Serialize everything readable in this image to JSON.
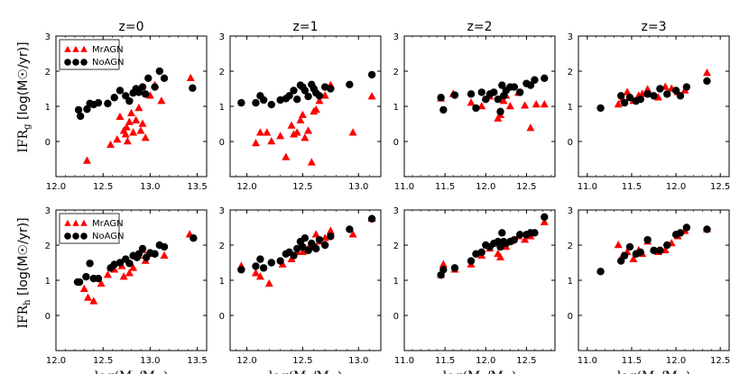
{
  "colors": {
    "mragn": "#ff0000",
    "noagn": "#000000"
  },
  "row_labels": {
    "top": {
      "main": "IFR",
      "sub": "g",
      "rest": " [log(M☉/yr)]"
    },
    "bottom": {
      "main": "IFR",
      "sub": "h",
      "rest": " [log(M☉/yr)]"
    }
  },
  "xlabel": {
    "pre": "log(M",
    "sub": "h",
    "mid": "/M",
    "sub2": "☉",
    "post": ")"
  },
  "legend": {
    "series1": "MrAGN",
    "series2": "NoAGN"
  },
  "chart_data": [
    {
      "type": "scatter",
      "title": "z=0",
      "row": "IFRg",
      "xlim": [
        12.0,
        13.6
      ],
      "ylim": [
        -1,
        3
      ],
      "xticks": [
        "12.0",
        "12.5",
        "13.0",
        "13.5"
      ],
      "yticks": [
        "0",
        "1",
        "2",
        "3"
      ],
      "legend": "upper-left",
      "series": [
        {
          "name": "MrAGN",
          "marker": "triangle",
          "x": [
            12.33,
            12.58,
            12.65,
            12.68,
            12.72,
            12.74,
            12.75,
            12.76,
            12.78,
            12.8,
            12.82,
            12.85,
            12.88,
            12.9,
            12.92,
            12.95,
            13.0,
            13.05,
            13.12,
            13.43
          ],
          "y": [
            -0.55,
            -0.1,
            0.05,
            0.7,
            0.3,
            0.2,
            0.4,
            0.0,
            0.55,
            0.8,
            0.25,
            0.6,
            0.95,
            0.3,
            0.5,
            0.1,
            1.3,
            1.6,
            1.15,
            1.8
          ]
        },
        {
          "name": "NoAGN",
          "marker": "circle",
          "x": [
            12.24,
            12.26,
            12.33,
            12.36,
            12.4,
            12.45,
            12.55,
            12.62,
            12.68,
            12.74,
            12.78,
            12.82,
            12.85,
            12.88,
            12.92,
            12.95,
            12.98,
            13.05,
            13.1,
            13.15,
            13.45
          ],
          "y": [
            0.9,
            0.72,
            0.92,
            1.08,
            1.05,
            1.1,
            1.08,
            1.25,
            1.45,
            1.3,
            1.15,
            1.38,
            1.5,
            1.4,
            1.55,
            1.35,
            1.8,
            1.55,
            2.0,
            1.8,
            1.52
          ]
        }
      ]
    },
    {
      "type": "scatter",
      "title": "z=1",
      "row": "IFRg",
      "xlim": [
        11.85,
        13.2
      ],
      "ylim": [
        -1,
        3
      ],
      "xticks": [
        "12.0",
        "12.5",
        "13.0"
      ],
      "yticks": [
        "0",
        "1",
        "2",
        "3"
      ],
      "series": [
        {
          "name": "MrAGN",
          "marker": "triangle",
          "x": [
            12.08,
            12.12,
            12.18,
            12.22,
            12.3,
            12.35,
            12.4,
            12.42,
            12.45,
            12.48,
            12.5,
            12.52,
            12.55,
            12.58,
            12.6,
            12.62,
            12.65,
            12.7,
            12.75,
            12.95,
            13.12
          ],
          "y": [
            -0.05,
            0.25,
            0.25,
            0.0,
            0.15,
            -0.45,
            0.45,
            0.2,
            0.25,
            0.6,
            0.75,
            0.1,
            0.3,
            -0.6,
            0.85,
            0.9,
            1.15,
            1.3,
            1.6,
            0.25,
            1.28
          ]
        },
        {
          "name": "NoAGN",
          "marker": "circle",
          "x": [
            11.95,
            12.08,
            12.12,
            12.15,
            12.22,
            12.3,
            12.35,
            12.38,
            12.42,
            12.45,
            12.48,
            12.5,
            12.52,
            12.55,
            12.58,
            12.6,
            12.62,
            12.65,
            12.7,
            12.75,
            12.92,
            13.12
          ],
          "y": [
            1.1,
            1.1,
            1.3,
            1.18,
            1.05,
            1.18,
            1.22,
            1.3,
            1.45,
            1.2,
            1.6,
            1.55,
            1.45,
            1.28,
            1.62,
            1.5,
            1.38,
            1.3,
            1.55,
            1.5,
            1.62,
            1.9
          ]
        }
      ]
    },
    {
      "type": "scatter",
      "title": "z=2",
      "row": "IFRg",
      "xlim": [
        11.0,
        12.85
      ],
      "ylim": [
        -1,
        3
      ],
      "xticks": [
        "11.0",
        "11.5",
        "12.0",
        "12.5"
      ],
      "yticks": [
        "0",
        "1",
        "2",
        "3"
      ],
      "series": [
        {
          "name": "MrAGN",
          "marker": "triangle",
          "x": [
            11.45,
            11.6,
            11.82,
            11.95,
            12.05,
            12.15,
            12.18,
            12.22,
            12.25,
            12.3,
            12.4,
            12.48,
            12.55,
            12.62,
            12.72
          ],
          "y": [
            1.22,
            1.35,
            1.1,
            1.0,
            1.28,
            0.65,
            0.75,
            1.15,
            1.3,
            1.0,
            1.38,
            1.02,
            0.38,
            1.05,
            1.05
          ]
        },
        {
          "name": "NoAGN",
          "marker": "circle",
          "x": [
            11.45,
            11.48,
            11.62,
            11.82,
            11.88,
            11.95,
            12.0,
            12.05,
            12.1,
            12.15,
            12.18,
            12.2,
            12.22,
            12.25,
            12.3,
            12.35,
            12.42,
            12.5,
            12.55,
            12.6,
            12.72
          ],
          "y": [
            1.25,
            0.9,
            1.32,
            1.35,
            0.95,
            1.4,
            1.2,
            1.35,
            1.4,
            1.2,
            0.85,
            1.6,
            1.3,
            1.45,
            1.55,
            1.55,
            1.4,
            1.65,
            1.6,
            1.75,
            1.8
          ]
        }
      ]
    },
    {
      "type": "scatter",
      "title": "z=3",
      "row": "IFRg",
      "xlim": [
        10.9,
        12.6
      ],
      "ylim": [
        -1,
        3
      ],
      "xticks": [
        "11.0",
        "11.5",
        "12.0",
        "12.5"
      ],
      "yticks": [
        "0",
        "1",
        "2",
        "3"
      ],
      "series": [
        {
          "name": "MrAGN",
          "marker": "triangle",
          "x": [
            11.35,
            11.4,
            11.45,
            11.52,
            11.58,
            11.62,
            11.68,
            11.8,
            11.88,
            11.95,
            12.02,
            12.1,
            12.35
          ],
          "y": [
            1.05,
            1.2,
            1.4,
            1.15,
            1.3,
            1.35,
            1.48,
            1.25,
            1.55,
            1.5,
            1.4,
            1.45,
            1.95
          ]
        },
        {
          "name": "NoAGN",
          "marker": "circle",
          "x": [
            11.15,
            11.38,
            11.42,
            11.48,
            11.55,
            11.6,
            11.68,
            11.75,
            11.82,
            11.9,
            12.0,
            12.05,
            12.12,
            12.35
          ],
          "y": [
            0.95,
            1.3,
            1.1,
            1.25,
            1.15,
            1.2,
            1.35,
            1.3,
            1.5,
            1.35,
            1.45,
            1.3,
            1.55,
            1.72
          ]
        }
      ]
    },
    {
      "type": "scatter",
      "row": "IFRh",
      "xlim": [
        12.0,
        13.6
      ],
      "ylim": [
        -1,
        3
      ],
      "xticks": [
        "12.0",
        "12.5",
        "13.0",
        "13.5"
      ],
      "yticks": [
        "0",
        "1",
        "2",
        "3"
      ],
      "legend": "upper-left",
      "series": [
        {
          "name": "MrAGN",
          "marker": "triangle",
          "x": [
            12.3,
            12.34,
            12.4,
            12.48,
            12.55,
            12.62,
            12.7,
            12.72,
            12.78,
            12.82,
            12.88,
            12.92,
            12.95,
            13.0,
            13.15,
            13.42
          ],
          "y": [
            0.75,
            0.5,
            0.4,
            0.9,
            1.15,
            1.3,
            1.4,
            1.1,
            1.2,
            1.35,
            1.7,
            1.85,
            1.55,
            1.75,
            1.7,
            2.3
          ]
        },
        {
          "name": "NoAGN",
          "marker": "circle",
          "x": [
            12.23,
            12.25,
            12.32,
            12.36,
            12.4,
            12.45,
            12.58,
            12.62,
            12.68,
            12.74,
            12.78,
            12.82,
            12.86,
            12.88,
            12.92,
            12.96,
            13.0,
            13.05,
            13.1,
            13.15,
            13.46
          ],
          "y": [
            0.95,
            0.95,
            1.1,
            1.48,
            1.05,
            1.05,
            1.35,
            1.45,
            1.5,
            1.6,
            1.48,
            1.7,
            1.65,
            1.75,
            1.9,
            1.65,
            1.78,
            1.75,
            2.0,
            1.95,
            2.2
          ]
        }
      ]
    },
    {
      "type": "scatter",
      "row": "IFRh",
      "xlim": [
        11.85,
        13.2
      ],
      "ylim": [
        -1,
        3
      ],
      "xticks": [
        "12.0",
        "12.5",
        "13.0"
      ],
      "yticks": [
        "0",
        "1",
        "2",
        "3"
      ],
      "series": [
        {
          "name": "MrAGN",
          "marker": "triangle",
          "x": [
            11.95,
            12.08,
            12.12,
            12.2,
            12.32,
            12.4,
            12.45,
            12.5,
            12.55,
            12.58,
            12.62,
            12.65,
            12.7,
            12.75,
            12.95,
            13.12
          ],
          "y": [
            1.4,
            1.2,
            1.1,
            0.9,
            1.45,
            1.6,
            1.8,
            1.8,
            1.9,
            2.0,
            2.3,
            2.1,
            2.2,
            2.4,
            2.3,
            2.75
          ]
        },
        {
          "name": "NoAGN",
          "marker": "circle",
          "x": [
            11.95,
            12.08,
            12.12,
            12.15,
            12.22,
            12.3,
            12.35,
            12.38,
            12.42,
            12.45,
            12.48,
            12.5,
            12.52,
            12.55,
            12.58,
            12.6,
            12.62,
            12.65,
            12.7,
            12.75,
            12.92,
            13.12
          ],
          "y": [
            1.3,
            1.4,
            1.6,
            1.35,
            1.5,
            1.55,
            1.75,
            1.8,
            1.7,
            1.9,
            2.1,
            1.95,
            2.2,
            1.85,
            2.05,
            1.95,
            1.9,
            2.15,
            2.0,
            2.25,
            2.45,
            2.75
          ]
        }
      ]
    },
    {
      "type": "scatter",
      "row": "IFRh",
      "xlim": [
        11.0,
        12.85
      ],
      "ylim": [
        -1,
        3
      ],
      "xticks": [
        "11.0",
        "11.5",
        "12.0",
        "12.5"
      ],
      "yticks": [
        "0",
        "1",
        "2",
        "3"
      ],
      "series": [
        {
          "name": "MrAGN",
          "marker": "triangle",
          "x": [
            11.45,
            11.48,
            11.62,
            11.82,
            11.95,
            12.05,
            12.15,
            12.18,
            12.22,
            12.25,
            12.3,
            12.4,
            12.48,
            12.55,
            12.72
          ],
          "y": [
            1.15,
            1.45,
            1.3,
            1.45,
            1.7,
            1.9,
            1.75,
            1.65,
            2.0,
            1.95,
            2.1,
            2.25,
            2.15,
            2.25,
            2.65
          ]
        },
        {
          "name": "NoAGN",
          "marker": "circle",
          "x": [
            11.45,
            11.48,
            11.62,
            11.82,
            11.88,
            11.95,
            12.0,
            12.05,
            12.1,
            12.15,
            12.18,
            12.2,
            12.22,
            12.25,
            12.3,
            12.35,
            12.42,
            12.5,
            12.55,
            12.6,
            12.72
          ],
          "y": [
            1.15,
            1.3,
            1.35,
            1.55,
            1.75,
            1.8,
            2.0,
            1.95,
            2.05,
            2.1,
            1.95,
            2.35,
            2.1,
            2.05,
            2.1,
            2.15,
            2.3,
            2.3,
            2.35,
            2.35,
            2.8
          ]
        }
      ]
    },
    {
      "type": "scatter",
      "row": "IFRh",
      "xlim": [
        10.9,
        12.6
      ],
      "ylim": [
        -1,
        3
      ],
      "xticks": [
        "11.0",
        "11.5",
        "12.0",
        "12.5"
      ],
      "yticks": [
        "0",
        "1",
        "2",
        "3"
      ],
      "series": [
        {
          "name": "MrAGN",
          "marker": "triangle",
          "x": [
            11.35,
            11.4,
            11.45,
            11.52,
            11.58,
            11.62,
            11.68,
            11.8,
            11.88,
            11.95,
            12.02,
            12.1,
            12.35
          ],
          "y": [
            2.0,
            1.7,
            1.8,
            1.6,
            1.85,
            1.75,
            2.1,
            1.8,
            1.85,
            2.05,
            2.25,
            2.4,
            2.45
          ]
        },
        {
          "name": "NoAGN",
          "marker": "circle",
          "x": [
            11.15,
            11.38,
            11.42,
            11.48,
            11.55,
            11.6,
            11.68,
            11.75,
            11.82,
            11.9,
            12.0,
            12.05,
            12.12,
            12.35
          ],
          "y": [
            1.25,
            1.55,
            1.7,
            1.95,
            1.75,
            1.8,
            2.15,
            1.85,
            1.85,
            2.0,
            2.3,
            2.35,
            2.5,
            2.45
          ]
        }
      ]
    }
  ]
}
